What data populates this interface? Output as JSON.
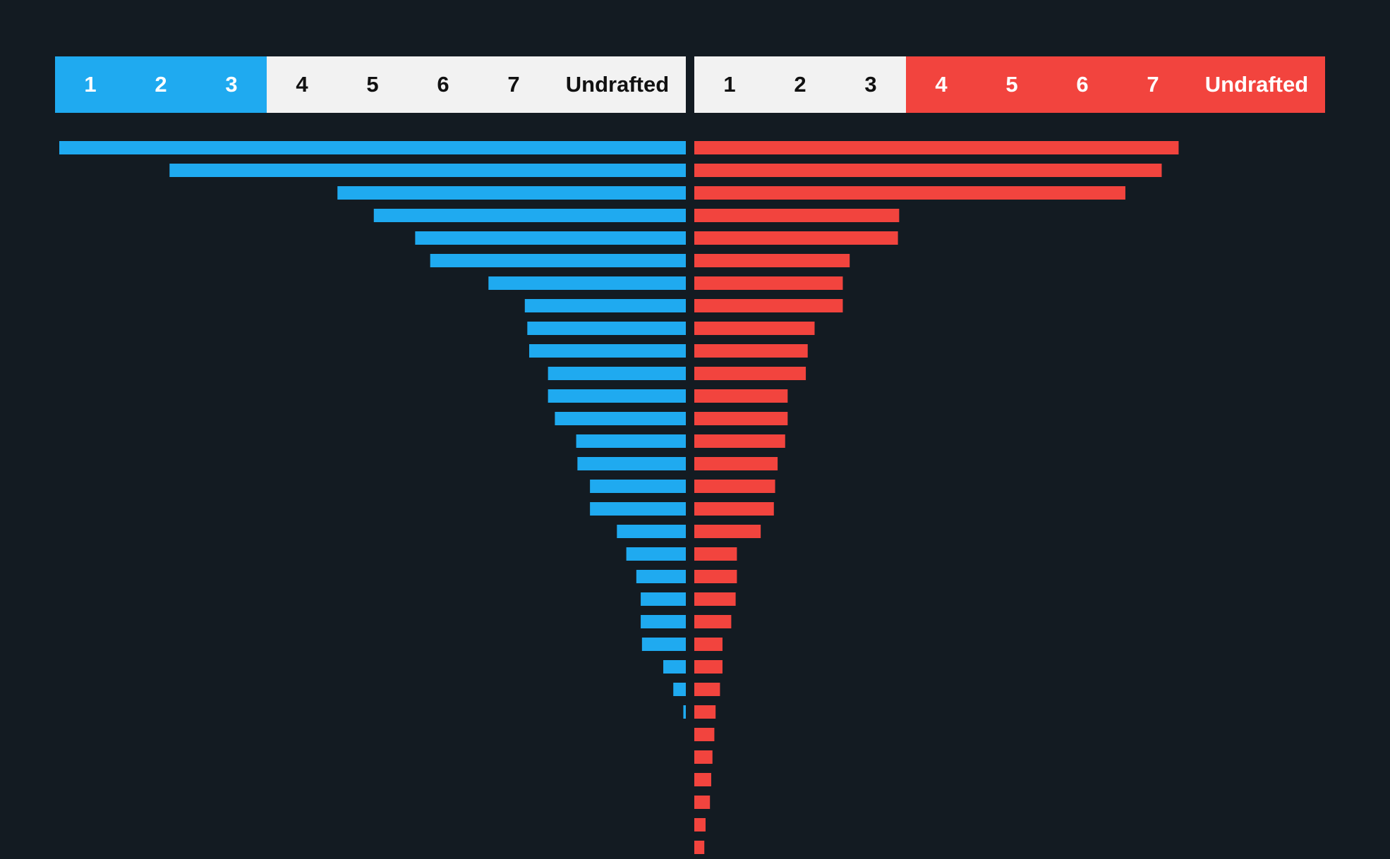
{
  "colors": {
    "background": "#131b22",
    "left_accent": "#1faaf0",
    "right_accent": "#f2443e",
    "neutral": "#f2f2f2",
    "neutral_text": "#111111",
    "accent_text": "#ffffff"
  },
  "legend": {
    "left": {
      "cells": [
        "1",
        "2",
        "3",
        "4",
        "5",
        "6",
        "7",
        "Undrafted"
      ],
      "highlighted_count": 3
    },
    "right": {
      "cells": [
        "1",
        "2",
        "3",
        "4",
        "5",
        "6",
        "7",
        "Undrafted"
      ],
      "highlighted_from": 3
    }
  },
  "chart_data": {
    "type": "bar",
    "orientation": "horizontal-diverging",
    "grid": false,
    "xlim": [
      0,
      1
    ],
    "series": [
      {
        "side": "left",
        "color": "#1faaf0",
        "values": [
          1.0,
          0.824,
          0.556,
          0.498,
          0.432,
          0.408,
          0.315,
          0.257,
          0.253,
          0.25,
          0.22,
          0.22,
          0.209,
          0.175,
          0.173,
          0.153,
          0.153,
          0.11,
          0.095,
          0.079,
          0.072,
          0.072,
          0.07,
          0.036,
          0.02,
          0.004
        ]
      },
      {
        "side": "right",
        "color": "#f2443e",
        "values": [
          0.773,
          0.746,
          0.688,
          0.327,
          0.325,
          0.248,
          0.237,
          0.237,
          0.192,
          0.181,
          0.178,
          0.149,
          0.149,
          0.145,
          0.133,
          0.129,
          0.127,
          0.106,
          0.068,
          0.068,
          0.066,
          0.059,
          0.045,
          0.045,
          0.041,
          0.034,
          0.032,
          0.029,
          0.027,
          0.025,
          0.018,
          0.016
        ]
      }
    ]
  }
}
